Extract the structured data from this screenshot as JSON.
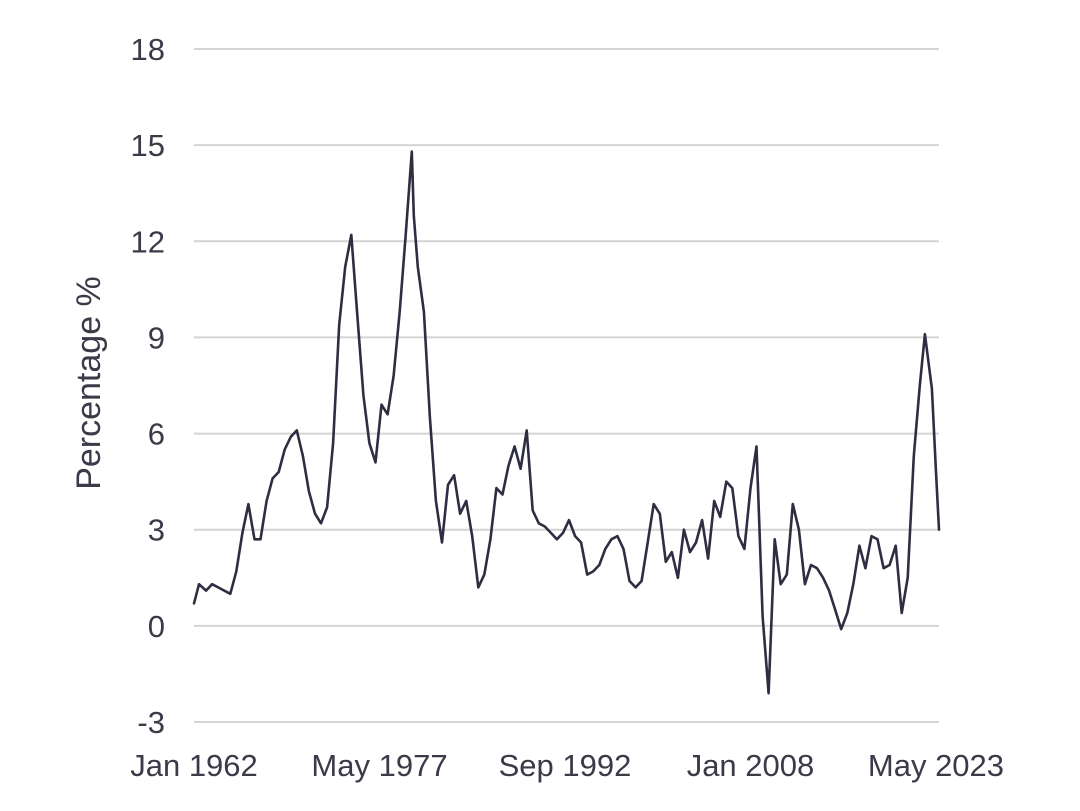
{
  "chart_data": {
    "type": "line",
    "title": "",
    "xlabel": "",
    "ylabel": "Percentage %",
    "ylim": [
      -3,
      18
    ],
    "yticks": [
      -3,
      0,
      3,
      6,
      9,
      12,
      15,
      18
    ],
    "xlim": [
      "Jan 1962",
      "Aug 2023"
    ],
    "xtick_labels": [
      "Jan 1962",
      "May 1977",
      "Sep 1992",
      "Jan 2008",
      "May 2023"
    ],
    "grid": true,
    "legend": "none",
    "line_color": "#2e2e42",
    "series": [
      {
        "x": [
          "Jan 1962",
          "Jun 1962",
          "Jan 1963",
          "Jul 1963",
          "Jan 1964",
          "Jul 1964",
          "Jan 1965",
          "Jul 1965",
          "Jan 1966",
          "Jul 1966",
          "Jan 1967",
          "Jul 1967",
          "Jan 1968",
          "Jul 1968",
          "Jan 1969",
          "Jul 1969",
          "Jan 1970",
          "Jul 1970",
          "Jan 1971",
          "Jul 1971",
          "Jan 1972",
          "Jul 1972",
          "Jan 1973",
          "Jul 1973",
          "Jan 1974",
          "Jul 1974",
          "Jan 1975",
          "Jul 1975",
          "Jan 1976",
          "Jul 1976",
          "Jan 1977",
          "Jul 1977",
          "Jan 1978",
          "Jul 1978",
          "Jan 1979",
          "Jul 1979",
          "Jan 1980",
          "Mar 1980",
          "Jul 1980",
          "Jan 1981",
          "Jul 1981",
          "Jan 1982",
          "Jul 1982",
          "Jan 1983",
          "Jul 1983",
          "Jan 1984",
          "Jul 1984",
          "Jan 1985",
          "Jul 1985",
          "Jan 1986",
          "Jul 1986",
          "Jan 1987",
          "Jul 1987",
          "Jan 1988",
          "Jul 1988",
          "Jan 1989",
          "Jul 1989",
          "Jan 1990",
          "Jul 1990",
          "Jan 1991",
          "Jul 1991",
          "Jan 1992",
          "Jul 1992",
          "Jan 1993",
          "Jul 1993",
          "Jan 1994",
          "Jul 1994",
          "Jan 1995",
          "Jul 1995",
          "Jan 1996",
          "Jul 1996",
          "Jan 1997",
          "Jul 1997",
          "Jan 1998",
          "Jul 1998",
          "Jan 1999",
          "Jul 1999",
          "Jan 2000",
          "Jul 2000",
          "Jan 2001",
          "Jul 2001",
          "Jan 2002",
          "Jul 2002",
          "Jan 2003",
          "Jul 2003",
          "Jan 2004",
          "Jul 2004",
          "Jan 2005",
          "Jul 2005",
          "Jan 2006",
          "Jul 2006",
          "Jan 2007",
          "Jul 2007",
          "Jan 2008",
          "Jul 2008",
          "Jan 2009",
          "Jul 2009",
          "Jan 2010",
          "Jul 2010",
          "Jan 2011",
          "Jul 2011",
          "Jan 2012",
          "Jul 2012",
          "Jan 2013",
          "Jul 2013",
          "Jan 2014",
          "Jul 2014",
          "Jan 2015",
          "Jul 2015",
          "Jan 2016",
          "Jul 2016",
          "Jan 2017",
          "Jul 2017",
          "Jan 2018",
          "Jul 2018",
          "Jan 2019",
          "Jul 2019",
          "Jan 2020",
          "Jul 2020",
          "Jan 2021",
          "Jul 2021",
          "Jan 2022",
          "Jun 2022",
          "Jan 2023",
          "May 2023",
          "Aug 2023"
        ],
        "values": [
          0.7,
          1.3,
          1.1,
          1.3,
          1.2,
          1.1,
          1.0,
          1.7,
          2.9,
          3.8,
          2.7,
          2.7,
          3.9,
          4.6,
          4.8,
          5.5,
          5.9,
          6.1,
          5.3,
          4.2,
          3.5,
          3.2,
          3.7,
          5.7,
          9.4,
          11.2,
          12.2,
          9.7,
          7.2,
          5.7,
          5.1,
          6.9,
          6.6,
          7.8,
          9.8,
          12.2,
          14.8,
          12.8,
          11.2,
          9.8,
          6.5,
          3.9,
          2.6,
          4.4,
          4.7,
          3.5,
          3.9,
          2.8,
          1.2,
          1.6,
          2.7,
          4.3,
          4.1,
          5.0,
          5.6,
          4.9,
          6.1,
          3.6,
          3.2,
          3.1,
          2.9,
          2.7,
          2.9,
          3.3,
          2.8,
          2.6,
          1.6,
          1.7,
          1.9,
          2.4,
          2.7,
          2.8,
          2.4,
          1.4,
          1.2,
          1.4,
          2.6,
          3.8,
          3.5,
          2.0,
          2.3,
          1.5,
          3.0,
          2.3,
          2.6,
          3.3,
          2.1,
          3.9,
          3.4,
          4.5,
          4.3,
          2.8,
          2.4,
          4.3,
          5.6,
          0.3,
          -2.1,
          2.7,
          1.3,
          1.6,
          3.8,
          3.0,
          1.3,
          1.9,
          1.8,
          1.5,
          1.1,
          0.5,
          -0.1,
          0.4,
          1.3,
          2.5,
          1.8,
          2.8,
          2.7,
          1.8,
          1.9,
          2.5,
          0.4,
          1.5,
          5.3,
          7.5,
          9.1,
          7.4,
          4.8,
          3.0
        ]
      }
    ]
  }
}
